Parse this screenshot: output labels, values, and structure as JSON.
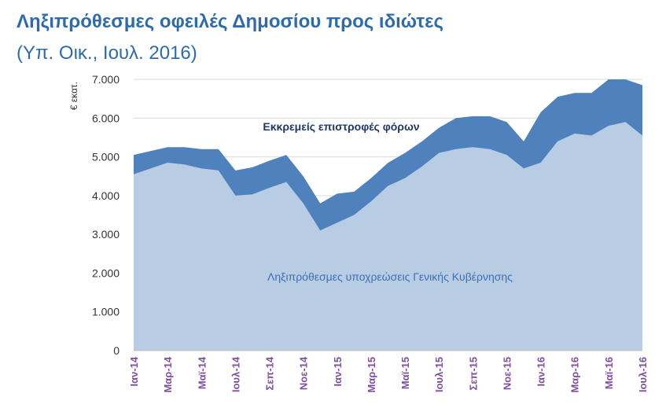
{
  "header": {
    "title": "Ληξιπρόθεσμες οφειλές Δημοσίου προς ιδιώτες",
    "subtitle": "(Υπ. Οικ.,  Ιουλ. 2016)"
  },
  "colors": {
    "title": "#2e6bad",
    "series_lower": "#b8cce4",
    "series_upper": "#4f81bd",
    "x_tick": "#7f4f9e",
    "annotation_upper": "#1f3864",
    "annotation_lower": "#3d6fb5"
  },
  "chart_data": {
    "type": "area",
    "stacked": true,
    "ylabel": "€ εκατ.",
    "ylim": [
      0,
      7000
    ],
    "yticks": [
      0,
      1000,
      2000,
      3000,
      4000,
      5000,
      6000,
      7000
    ],
    "ytick_labels": [
      "0",
      "1.000",
      "2.000",
      "3.000",
      "4.000",
      "5.000",
      "6.000",
      "7.000"
    ],
    "grid": true,
    "x": [
      "Ιαν-14",
      "Φεβ-14",
      "Μαρ-14",
      "Απρ-14",
      "Μαϊ-14",
      "Ιουν-14",
      "Ιουλ-14",
      "Αυγ-14",
      "Σεπ-14",
      "Οκτ-14",
      "Νοε-14",
      "Δεκ-14",
      "Ιαν-15",
      "Φεβ-15",
      "Μαρ-15",
      "Απρ-15",
      "Μαϊ-15",
      "Ιουν-15",
      "Ιουλ-15",
      "Αυγ-15",
      "Σεπ-15",
      "Οκτ-15",
      "Νοε-15",
      "Δεκ-15",
      "Ιαν-16",
      "Φεβ-16",
      "Μαρ-16",
      "Απρ-16",
      "Μαϊ-16",
      "Ιουν-16",
      "Ιουλ-16"
    ],
    "xtick_labels": [
      "Ιαν-14",
      "",
      "Μαρ-14",
      "",
      "Μαϊ-14",
      "",
      "Ιουλ-14",
      "",
      "Σεπ-14",
      "",
      "Νοε-14",
      "",
      "Ιαν-15",
      "",
      "Μαρ-15",
      "",
      "Μαϊ-15",
      "",
      "Ιουλ-15",
      "",
      "Σεπ-15",
      "",
      "Νοε-15",
      "",
      "Ιαν-16",
      "",
      "Μαρ-16",
      "",
      "Μαϊ-16",
      "",
      "Ιουλ-16"
    ],
    "series": [
      {
        "name": "Ληξιπρόθεσμες υποχρεώσεις Γενικής Κυβέρνησης",
        "values": [
          4550,
          4700,
          4850,
          4800,
          4700,
          4650,
          4000,
          4030,
          4200,
          4350,
          3800,
          3100,
          3300,
          3500,
          3850,
          4250,
          4450,
          4750,
          5100,
          5200,
          5250,
          5200,
          5050,
          4700,
          4850,
          5400,
          5600,
          5550,
          5800,
          5900,
          5550
        ]
      },
      {
        "name": "Εκκρεμείς επιστροφές φόρων",
        "values": [
          500,
          450,
          400,
          450,
          500,
          550,
          650,
          700,
          700,
          700,
          700,
          700,
          750,
          600,
          600,
          600,
          650,
          650,
          650,
          800,
          800,
          850,
          850,
          700,
          1300,
          1150,
          1050,
          1100,
          1200,
          1100,
          1300
        ]
      }
    ]
  }
}
